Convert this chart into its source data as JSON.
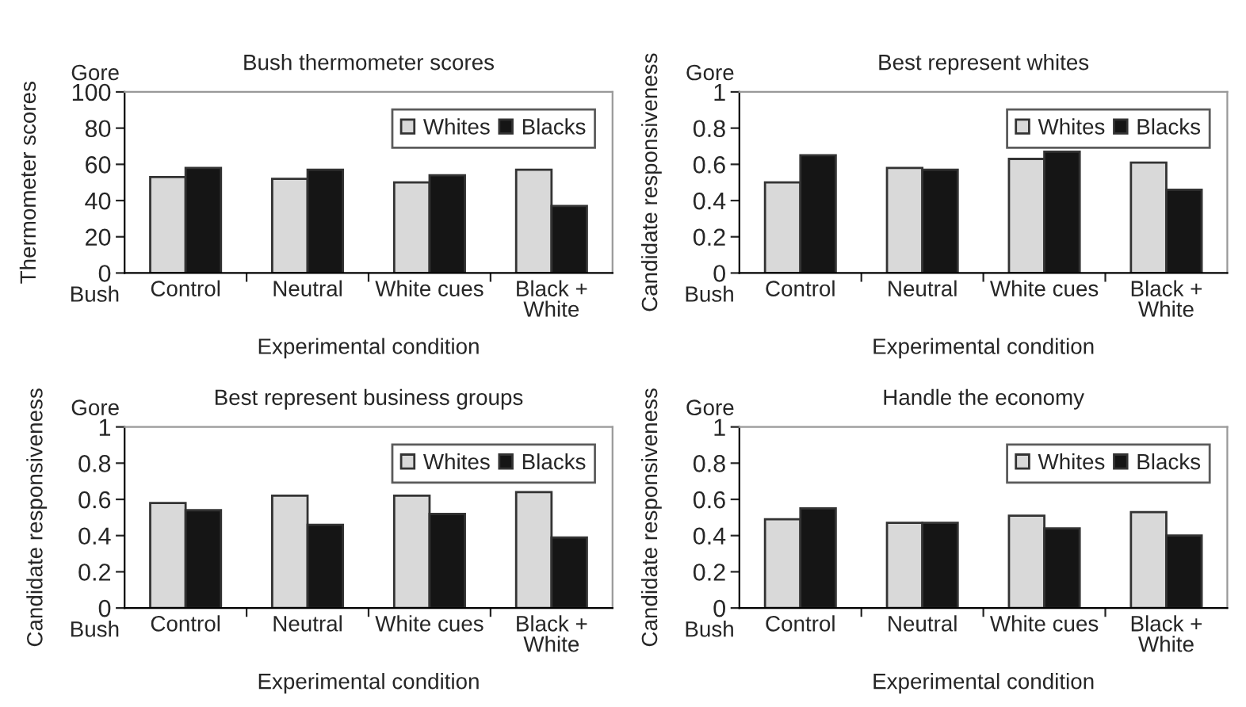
{
  "chart_data": [
    {
      "type": "bar",
      "title": "Bush thermometer scores",
      "xlabel": "Experimental condition",
      "ylabel": "Thermometer scores",
      "categories": [
        "Control",
        "Neutral",
        "White cues",
        "Black +\nWhite"
      ],
      "ylim": [
        0,
        100
      ],
      "yticks": [
        0,
        20,
        40,
        60,
        80,
        100
      ],
      "legend": "top right",
      "grid": false,
      "annotations": [
        "Gore",
        "Bush"
      ],
      "series": [
        {
          "name": "Whites",
          "color": "#d9d9d9",
          "values": [
            53,
            52,
            50,
            57
          ]
        },
        {
          "name": "Blacks",
          "color": "#151515",
          "values": [
            58,
            57,
            54,
            37
          ]
        }
      ]
    },
    {
      "type": "bar",
      "title": "Best represent whites",
      "xlabel": "Experimental condition",
      "ylabel": "Candidate responsiveness",
      "categories": [
        "Control",
        "Neutral",
        "White cues",
        "Black +\nWhite"
      ],
      "ylim": [
        0,
        1
      ],
      "yticks": [
        0,
        0.2,
        0.4,
        0.6,
        0.8,
        1
      ],
      "legend": "top right",
      "grid": false,
      "annotations": [
        "Gore",
        "Bush"
      ],
      "series": [
        {
          "name": "Whites",
          "color": "#d9d9d9",
          "values": [
            0.5,
            0.58,
            0.63,
            0.61
          ]
        },
        {
          "name": "Blacks",
          "color": "#151515",
          "values": [
            0.65,
            0.57,
            0.67,
            0.46
          ]
        }
      ]
    },
    {
      "type": "bar",
      "title": "Best represent business groups",
      "xlabel": "Experimental condition",
      "ylabel": "Candidate responsiveness",
      "categories": [
        "Control",
        "Neutral",
        "White cues",
        "Black +\nWhite"
      ],
      "ylim": [
        0,
        1
      ],
      "yticks": [
        0,
        0.2,
        0.4,
        0.6,
        0.8,
        1
      ],
      "legend": "top right",
      "grid": false,
      "annotations": [
        "Gore",
        "Bush"
      ],
      "series": [
        {
          "name": "Whites",
          "color": "#d9d9d9",
          "values": [
            0.58,
            0.62,
            0.62,
            0.64
          ]
        },
        {
          "name": "Blacks",
          "color": "#151515",
          "values": [
            0.54,
            0.46,
            0.52,
            0.39
          ]
        }
      ]
    },
    {
      "type": "bar",
      "title": "Handle the economy",
      "xlabel": "Experimental condition",
      "ylabel": "Candidate responsiveness",
      "categories": [
        "Control",
        "Neutral",
        "White cues",
        "Black +\nWhite"
      ],
      "ylim": [
        0,
        1
      ],
      "yticks": [
        0,
        0.2,
        0.4,
        0.6,
        0.8,
        1
      ],
      "legend": "top right",
      "grid": false,
      "annotations": [
        "Gore",
        "Bush"
      ],
      "series": [
        {
          "name": "Whites",
          "color": "#d9d9d9",
          "values": [
            0.49,
            0.47,
            0.51,
            0.53
          ]
        },
        {
          "name": "Blacks",
          "color": "#151515",
          "values": [
            0.55,
            0.47,
            0.44,
            0.4
          ]
        }
      ]
    }
  ]
}
